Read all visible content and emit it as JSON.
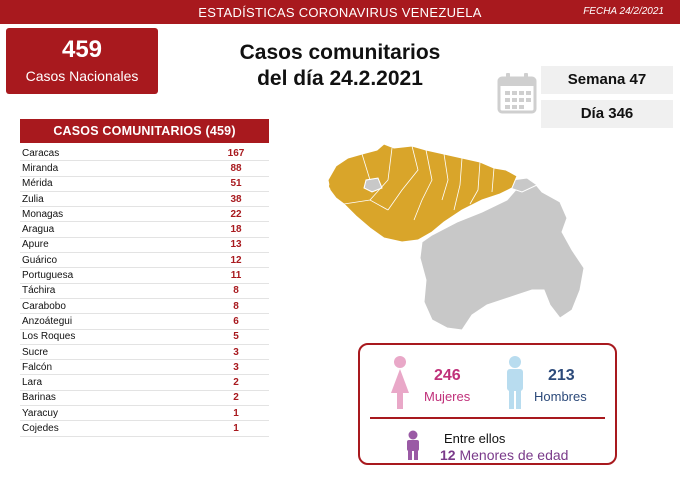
{
  "header": {
    "title": "ESTADÍSTICAS CORONAVIRUS VENEZUELA",
    "date": "FECHA 24/2/2021"
  },
  "national": {
    "count": "459",
    "label": "Casos Nacionales"
  },
  "headline": {
    "line1": "Casos comunitarios",
    "line2": "del día 24.2.2021"
  },
  "week": {
    "label": "Semana 47"
  },
  "day": {
    "label": "Día 346"
  },
  "table": {
    "title": "CASOS COMUNITARIOS (459)",
    "rows": [
      {
        "name": "Caracas",
        "value": "167"
      },
      {
        "name": "Miranda",
        "value": "88"
      },
      {
        "name": "Mérida",
        "value": "51"
      },
      {
        "name": "Zulia",
        "value": "38"
      },
      {
        "name": "Monagas",
        "value": "22"
      },
      {
        "name": "Aragua",
        "value": "18"
      },
      {
        "name": "Apure",
        "value": "13"
      },
      {
        "name": "Guárico",
        "value": "12"
      },
      {
        "name": "Portuguesa",
        "value": "11"
      },
      {
        "name": "Táchira",
        "value": "8"
      },
      {
        "name": "Carabobo",
        "value": "8"
      },
      {
        "name": "Anzoátegui",
        "value": "6"
      },
      {
        "name": "Los Roques",
        "value": "5"
      },
      {
        "name": "Sucre",
        "value": "3"
      },
      {
        "name": "Falcón",
        "value": "3"
      },
      {
        "name": "Lara",
        "value": "2"
      },
      {
        "name": "Barinas",
        "value": "2"
      },
      {
        "name": "Yaracuy",
        "value": "1"
      },
      {
        "name": "Cojedes",
        "value": "1"
      }
    ]
  },
  "gender": {
    "women_count": "246",
    "women_label": "Mujeres",
    "men_count": "213",
    "men_label": "Hombres",
    "among_label": "Entre ellos",
    "minors_count": "12",
    "minors_label": "Menores de edad"
  },
  "colors": {
    "brand_red": "#a8191e",
    "affected_states": "#d9a52a",
    "unaffected_states": "#c8c8c8",
    "women": "#e9a8c8",
    "men": "#b8dcef",
    "minors": "#9a5aa5"
  },
  "icons": {
    "calendar": "calendar-icon",
    "woman": "woman-icon",
    "man": "man-icon",
    "child": "child-icon"
  }
}
